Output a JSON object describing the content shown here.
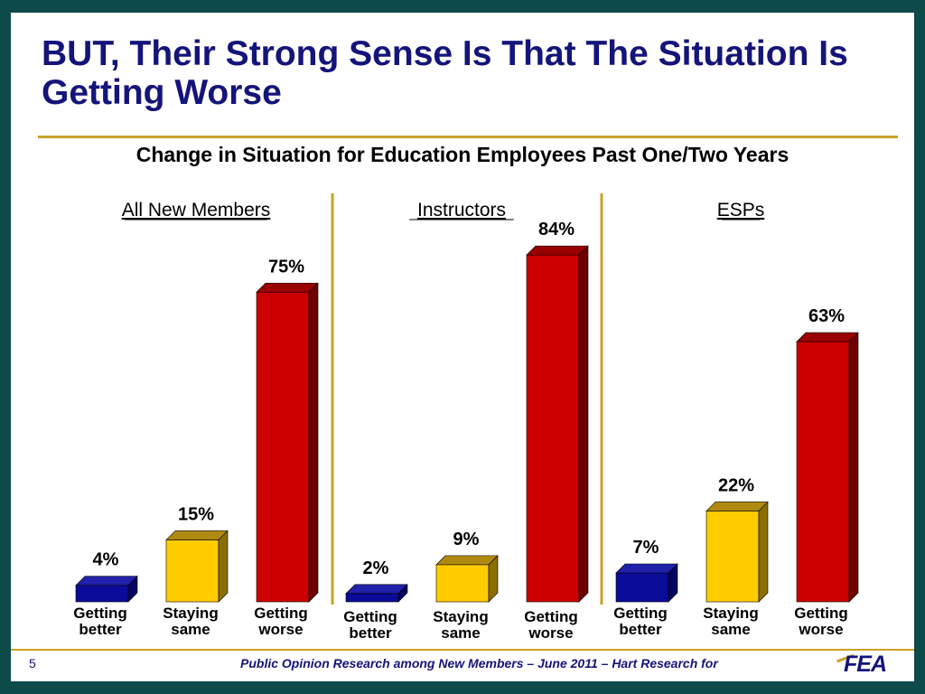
{
  "title": "BUT, Their Strong Sense Is That The Situation Is Getting Worse",
  "footer": {
    "page_number": "5",
    "source_text": "Public Opinion Research among New Members – June 2011 – Hart Research for",
    "logo_text": "FEA"
  },
  "colors": {
    "background": "#0d4a4a",
    "title": "#14147a",
    "accent": "#c8a227",
    "better": "#0b0b99",
    "same": "#ffcc00",
    "worse": "#cc0000"
  },
  "chart_data": {
    "type": "bar",
    "title": "Change in Situation for Education Employees Past One/Two Years",
    "ylim": [
      0,
      100
    ],
    "grid": false,
    "categories": [
      "Getting better",
      "Staying same",
      "Getting worse"
    ],
    "groups": [
      {
        "name": "All New Members",
        "values": [
          4,
          15,
          75
        ],
        "labels": [
          "4%",
          "15%",
          "75%"
        ]
      },
      {
        "name": "Instructors",
        "values": [
          2,
          9,
          84
        ],
        "labels": [
          "2%",
          "9%",
          "84%"
        ]
      },
      {
        "name": "ESPs",
        "values": [
          7,
          22,
          63
        ],
        "labels": [
          "7%",
          "22%",
          "63%"
        ]
      }
    ],
    "category_labels": [
      [
        "Getting",
        "better"
      ],
      [
        "Staying",
        "same"
      ],
      [
        "Getting",
        "worse"
      ]
    ]
  }
}
